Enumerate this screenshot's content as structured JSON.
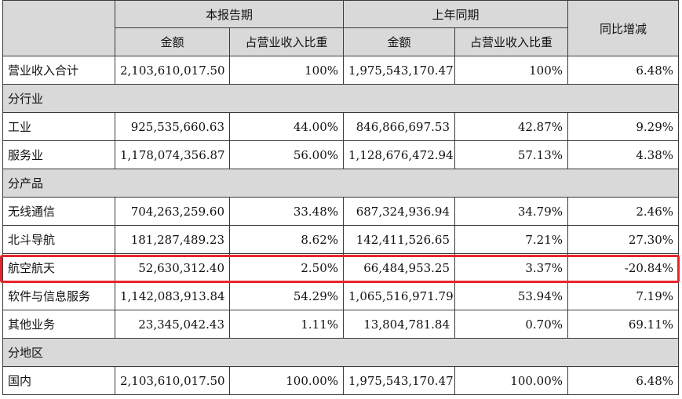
{
  "header": {
    "current_period": "本报告期",
    "prior_period": "上年同期",
    "yoy_change": "同比增减",
    "amount": "金额",
    "share": "占营业收入比重"
  },
  "total_row": {
    "label": "营业收入合计",
    "cur_amount": "2,103,610,017.50",
    "cur_share": "100%",
    "prev_amount": "1,975,543,170.47",
    "prev_share": "100%",
    "change": "6.48%"
  },
  "sections": [
    {
      "title": "分行业",
      "rows": [
        {
          "label": "工业",
          "cur_amount": "925,535,660.63",
          "cur_share": "44.00%",
          "prev_amount": "846,866,697.53",
          "prev_share": "42.87%",
          "change": "9.29%"
        },
        {
          "label": "服务业",
          "cur_amount": "1,178,074,356.87",
          "cur_share": "56.00%",
          "prev_amount": "1,128,676,472.94",
          "prev_share": "57.13%",
          "change": "4.38%"
        }
      ]
    },
    {
      "title": "分产品",
      "rows": [
        {
          "label": "无线通信",
          "cur_amount": "704,263,259.60",
          "cur_share": "33.48%",
          "prev_amount": "687,324,936.94",
          "prev_share": "34.79%",
          "change": "2.46%"
        },
        {
          "label": "北斗导航",
          "cur_amount": "181,287,489.23",
          "cur_share": "8.62%",
          "prev_amount": "142,411,526.65",
          "prev_share": "7.21%",
          "change": "27.30%"
        },
        {
          "label": "航空航天",
          "cur_amount": "52,630,312.40",
          "cur_share": "2.50%",
          "prev_amount": "66,484,953.25",
          "prev_share": "3.37%",
          "change": "-20.84%"
        },
        {
          "label": "软件与信息服务",
          "cur_amount": "1,142,083,913.84",
          "cur_share": "54.29%",
          "prev_amount": "1,065,516,971.79",
          "prev_share": "53.94%",
          "change": "7.19%"
        },
        {
          "label": "其他业务",
          "cur_amount": "23,345,042.43",
          "cur_share": "1.11%",
          "prev_amount": "13,804,781.84",
          "prev_share": "0.70%",
          "change": "69.11%"
        }
      ]
    },
    {
      "title": "分地区",
      "rows": [
        {
          "label": "国内",
          "cur_amount": "2,103,610,017.50",
          "cur_share": "100.00%",
          "prev_amount": "1,975,543,170.47",
          "prev_share": "100.00%",
          "change": "6.48%"
        }
      ]
    }
  ],
  "highlight": {
    "row_label": "航空航天",
    "color": "#e8252a"
  }
}
